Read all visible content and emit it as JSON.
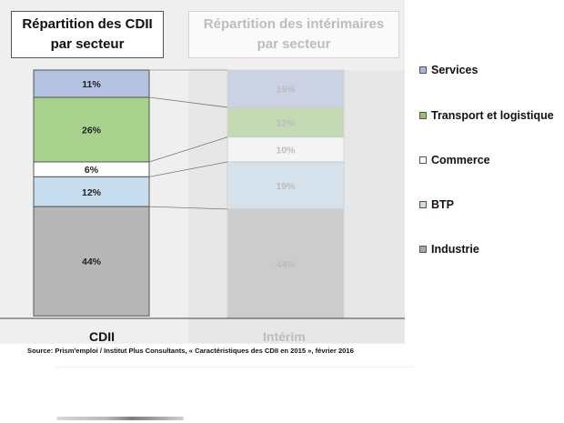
{
  "titles": {
    "left_line1": "Répartition des CDII",
    "left_line2": "par secteur",
    "right_line1": "Répartition des intérimaires",
    "right_line2": "par secteur"
  },
  "chart_data": {
    "type": "bar",
    "stacked": true,
    "categories": [
      "CDII",
      "Intérim"
    ],
    "series": [
      {
        "name": "Services",
        "values": [
          11,
          15
        ],
        "labels": [
          "11%",
          "15%"
        ],
        "color": "#b4c2e2"
      },
      {
        "name": "Transport et logistique",
        "values": [
          26,
          12
        ],
        "labels": [
          "26%",
          "12%"
        ],
        "color": "#a9d18e"
      },
      {
        "name": "Commerce",
        "values": [
          6,
          10
        ],
        "labels": [
          "6%",
          "10%"
        ],
        "color": "#ffffff"
      },
      {
        "name": "BTP",
        "values": [
          12,
          19
        ],
        "labels": [
          "12%",
          "19%"
        ],
        "color": "#c7ddf0"
      },
      {
        "name": "Industrie",
        "values": [
          44,
          44
        ],
        "labels": [
          "44%",
          "44%"
        ],
        "color": "#b7b7b7"
      }
    ],
    "ylim": [
      0,
      100
    ],
    "legend_position": "right",
    "grid": false
  },
  "legend": [
    {
      "label": "Services",
      "color": "#a8b6dc"
    },
    {
      "label": "Transport et logistique",
      "color": "#8fc46d"
    },
    {
      "label": "Commerce",
      "color": "#ffffff"
    },
    {
      "label": "BTP",
      "color": "#c7ddf0"
    },
    {
      "label": "Industrie",
      "color": "#a8a8a8"
    }
  ],
  "source": "Source: Prism'emploi / Institut Plus Consultants, « Caractéristiques des CDII en 2015 », février 2016"
}
